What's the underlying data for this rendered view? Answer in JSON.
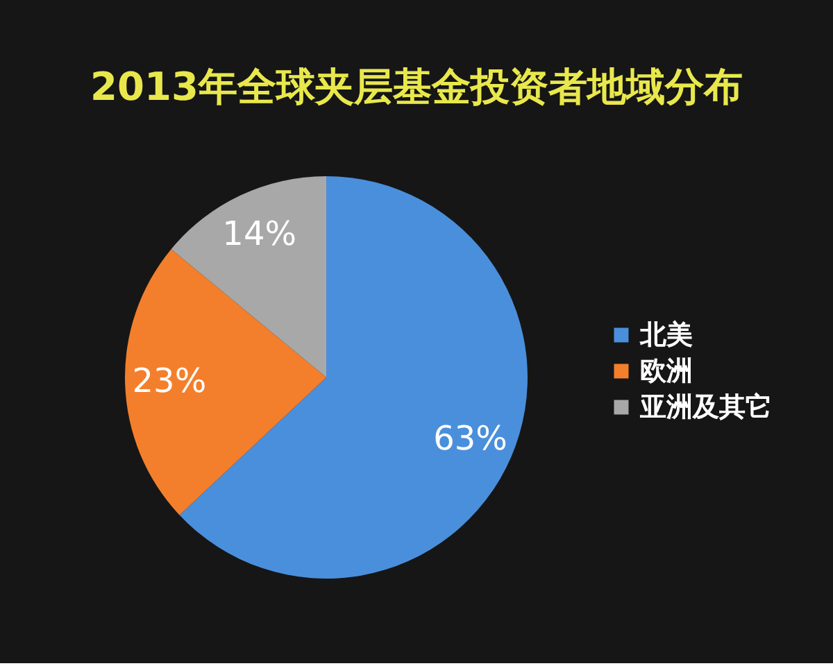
{
  "chart_data": {
    "type": "pie",
    "title": "2013年全球夹层基金投资者地域分布",
    "categories": [
      "北美",
      "欧洲",
      "亚洲及其它"
    ],
    "values": [
      63,
      23,
      14
    ],
    "colors": [
      "#4a8fdb",
      "#f37f2c",
      "#a8a8a8"
    ],
    "value_labels": [
      "63%",
      "23%",
      "14%"
    ],
    "legend": "right"
  }
}
